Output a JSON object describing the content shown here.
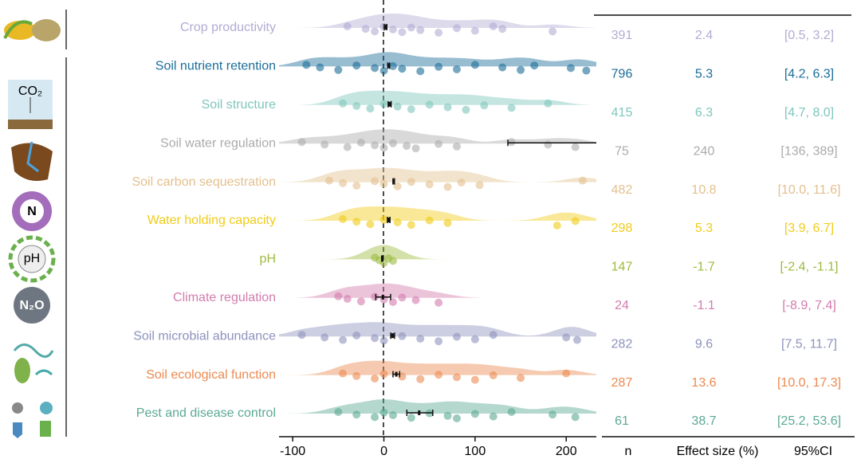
{
  "chart_data": {
    "type": "raincloud",
    "categories": [
      "Crop productivity",
      "Soil nutrient retention",
      "Soil structure",
      "Soil water regulation",
      "Soil carbon sequestration",
      "Water holding capacity",
      "pH",
      "Climate regulation",
      "Soil microbial abundance",
      "Soil ecological function",
      "Pest and disease control"
    ],
    "colors": [
      "#b3acd4",
      "#1b6d98",
      "#7fc6bd",
      "#ababab",
      "#e3c08e",
      "#f0cc18",
      "#9dbb3f",
      "#d27cae",
      "#8d92bd",
      "#ec8a50",
      "#5ba993"
    ],
    "values": [
      2.4,
      5.3,
      6.3,
      240,
      10.8,
      5.3,
      -1.7,
      -1.1,
      9.6,
      13.6,
      38.7
    ],
    "ci_low": [
      0.5,
      4.2,
      4.7,
      136,
      10.0,
      3.9,
      -2.4,
      -8.9,
      7.5,
      10.0,
      25.2
    ],
    "ci_high": [
      3.2,
      6.3,
      8.0,
      389,
      11.6,
      6.7,
      -1.1,
      7.4,
      11.7,
      17.3,
      53.6
    ],
    "ci_labels": [
      "[0.5, 3.2]",
      "[4.2, 6.3]",
      "[4.7, 8.0]",
      "[136, 389]",
      "[10.0, 11.6]",
      "[3.9, 6.7]",
      "[-2.4, -1.1]",
      "[-8.9, 7.4]",
      "[7.5, 11.7]",
      "[10.0, 17.3]",
      "[25.2, 53.6]"
    ],
    "n": [
      391,
      796,
      415,
      75,
      482,
      298,
      147,
      24,
      282,
      287,
      61
    ],
    "points": [
      [
        -40,
        -20,
        -10,
        0,
        10,
        20,
        30,
        40,
        60,
        80,
        100,
        120,
        130,
        185
      ],
      [
        -85,
        -70,
        -50,
        -30,
        -10,
        0,
        10,
        20,
        40,
        60,
        80,
        100,
        130,
        150,
        165,
        205,
        222
      ],
      [
        -45,
        -30,
        -15,
        0,
        15,
        30,
        50,
        70,
        90,
        110,
        140,
        180
      ],
      [
        -90,
        -65,
        -40,
        -25,
        -10,
        0,
        10,
        25,
        35,
        60,
        80,
        140,
        180,
        210
      ],
      [
        -60,
        -45,
        -30,
        -10,
        0,
        15,
        30,
        50,
        70,
        85,
        105,
        218
      ],
      [
        -45,
        -30,
        -15,
        0,
        15,
        30,
        50,
        70,
        190,
        210
      ],
      [
        -10,
        -5,
        0,
        5,
        10
      ],
      [
        -50,
        -40,
        -25,
        -10,
        0,
        10,
        20,
        35,
        60
      ],
      [
        -90,
        -65,
        -45,
        -30,
        -10,
        0,
        20,
        40,
        60,
        80,
        100,
        120,
        200,
        212
      ],
      [
        -45,
        -30,
        -10,
        0,
        20,
        40,
        60,
        80,
        100,
        120,
        150,
        200
      ],
      [
        -50,
        -30,
        -10,
        0,
        10,
        30,
        50,
        70,
        80,
        100,
        120,
        140,
        185,
        210
      ]
    ],
    "columns": [
      "n",
      "Effect size (%)",
      "95%CI"
    ],
    "xlim": [
      -115,
      233
    ],
    "xticks": [
      -100,
      0,
      100,
      200
    ]
  }
}
